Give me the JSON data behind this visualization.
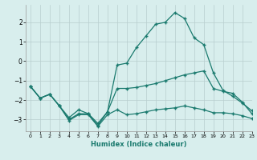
{
  "title": "",
  "xlabel": "Humidex (Indice chaleur)",
  "background_color": "#d8eeed",
  "line_color": "#1a7a6e",
  "grid_color": "#b8cece",
  "xlim": [
    -0.5,
    23
  ],
  "ylim": [
    -3.6,
    2.9
  ],
  "yticks": [
    -3,
    -2,
    -1,
    0,
    1,
    2
  ],
  "xticks": [
    0,
    1,
    2,
    3,
    4,
    5,
    6,
    7,
    8,
    9,
    10,
    11,
    12,
    13,
    14,
    15,
    16,
    17,
    18,
    19,
    20,
    21,
    22,
    23
  ],
  "x": [
    0,
    1,
    2,
    3,
    4,
    5,
    6,
    7,
    8,
    9,
    10,
    11,
    12,
    13,
    14,
    15,
    16,
    17,
    18,
    19,
    20,
    21,
    22,
    23
  ],
  "y_peak": [
    -1.3,
    -1.9,
    -1.7,
    -2.3,
    -2.9,
    -2.5,
    -2.7,
    -3.2,
    -2.6,
    -0.2,
    -0.1,
    0.7,
    1.3,
    1.9,
    2.0,
    2.5,
    2.2,
    1.2,
    0.85,
    -0.6,
    -1.5,
    -1.8,
    -2.15,
    -2.55
  ],
  "y_mid": [
    -1.3,
    -1.9,
    -1.7,
    -2.3,
    -3.0,
    -2.7,
    -2.7,
    -3.3,
    -2.6,
    -1.4,
    -1.4,
    -1.35,
    -1.25,
    -1.15,
    -1.0,
    -0.85,
    -0.7,
    -0.6,
    -0.5,
    -1.4,
    -1.55,
    -1.65,
    -2.1,
    -2.7
  ],
  "y_lower": [
    -1.3,
    -1.9,
    -1.7,
    -2.3,
    -3.05,
    -2.75,
    -2.75,
    -3.35,
    -2.75,
    -2.5,
    -2.75,
    -2.7,
    -2.6,
    -2.5,
    -2.45,
    -2.4,
    -2.3,
    -2.4,
    -2.5,
    -2.65,
    -2.65,
    -2.7,
    -2.8,
    -2.95
  ]
}
